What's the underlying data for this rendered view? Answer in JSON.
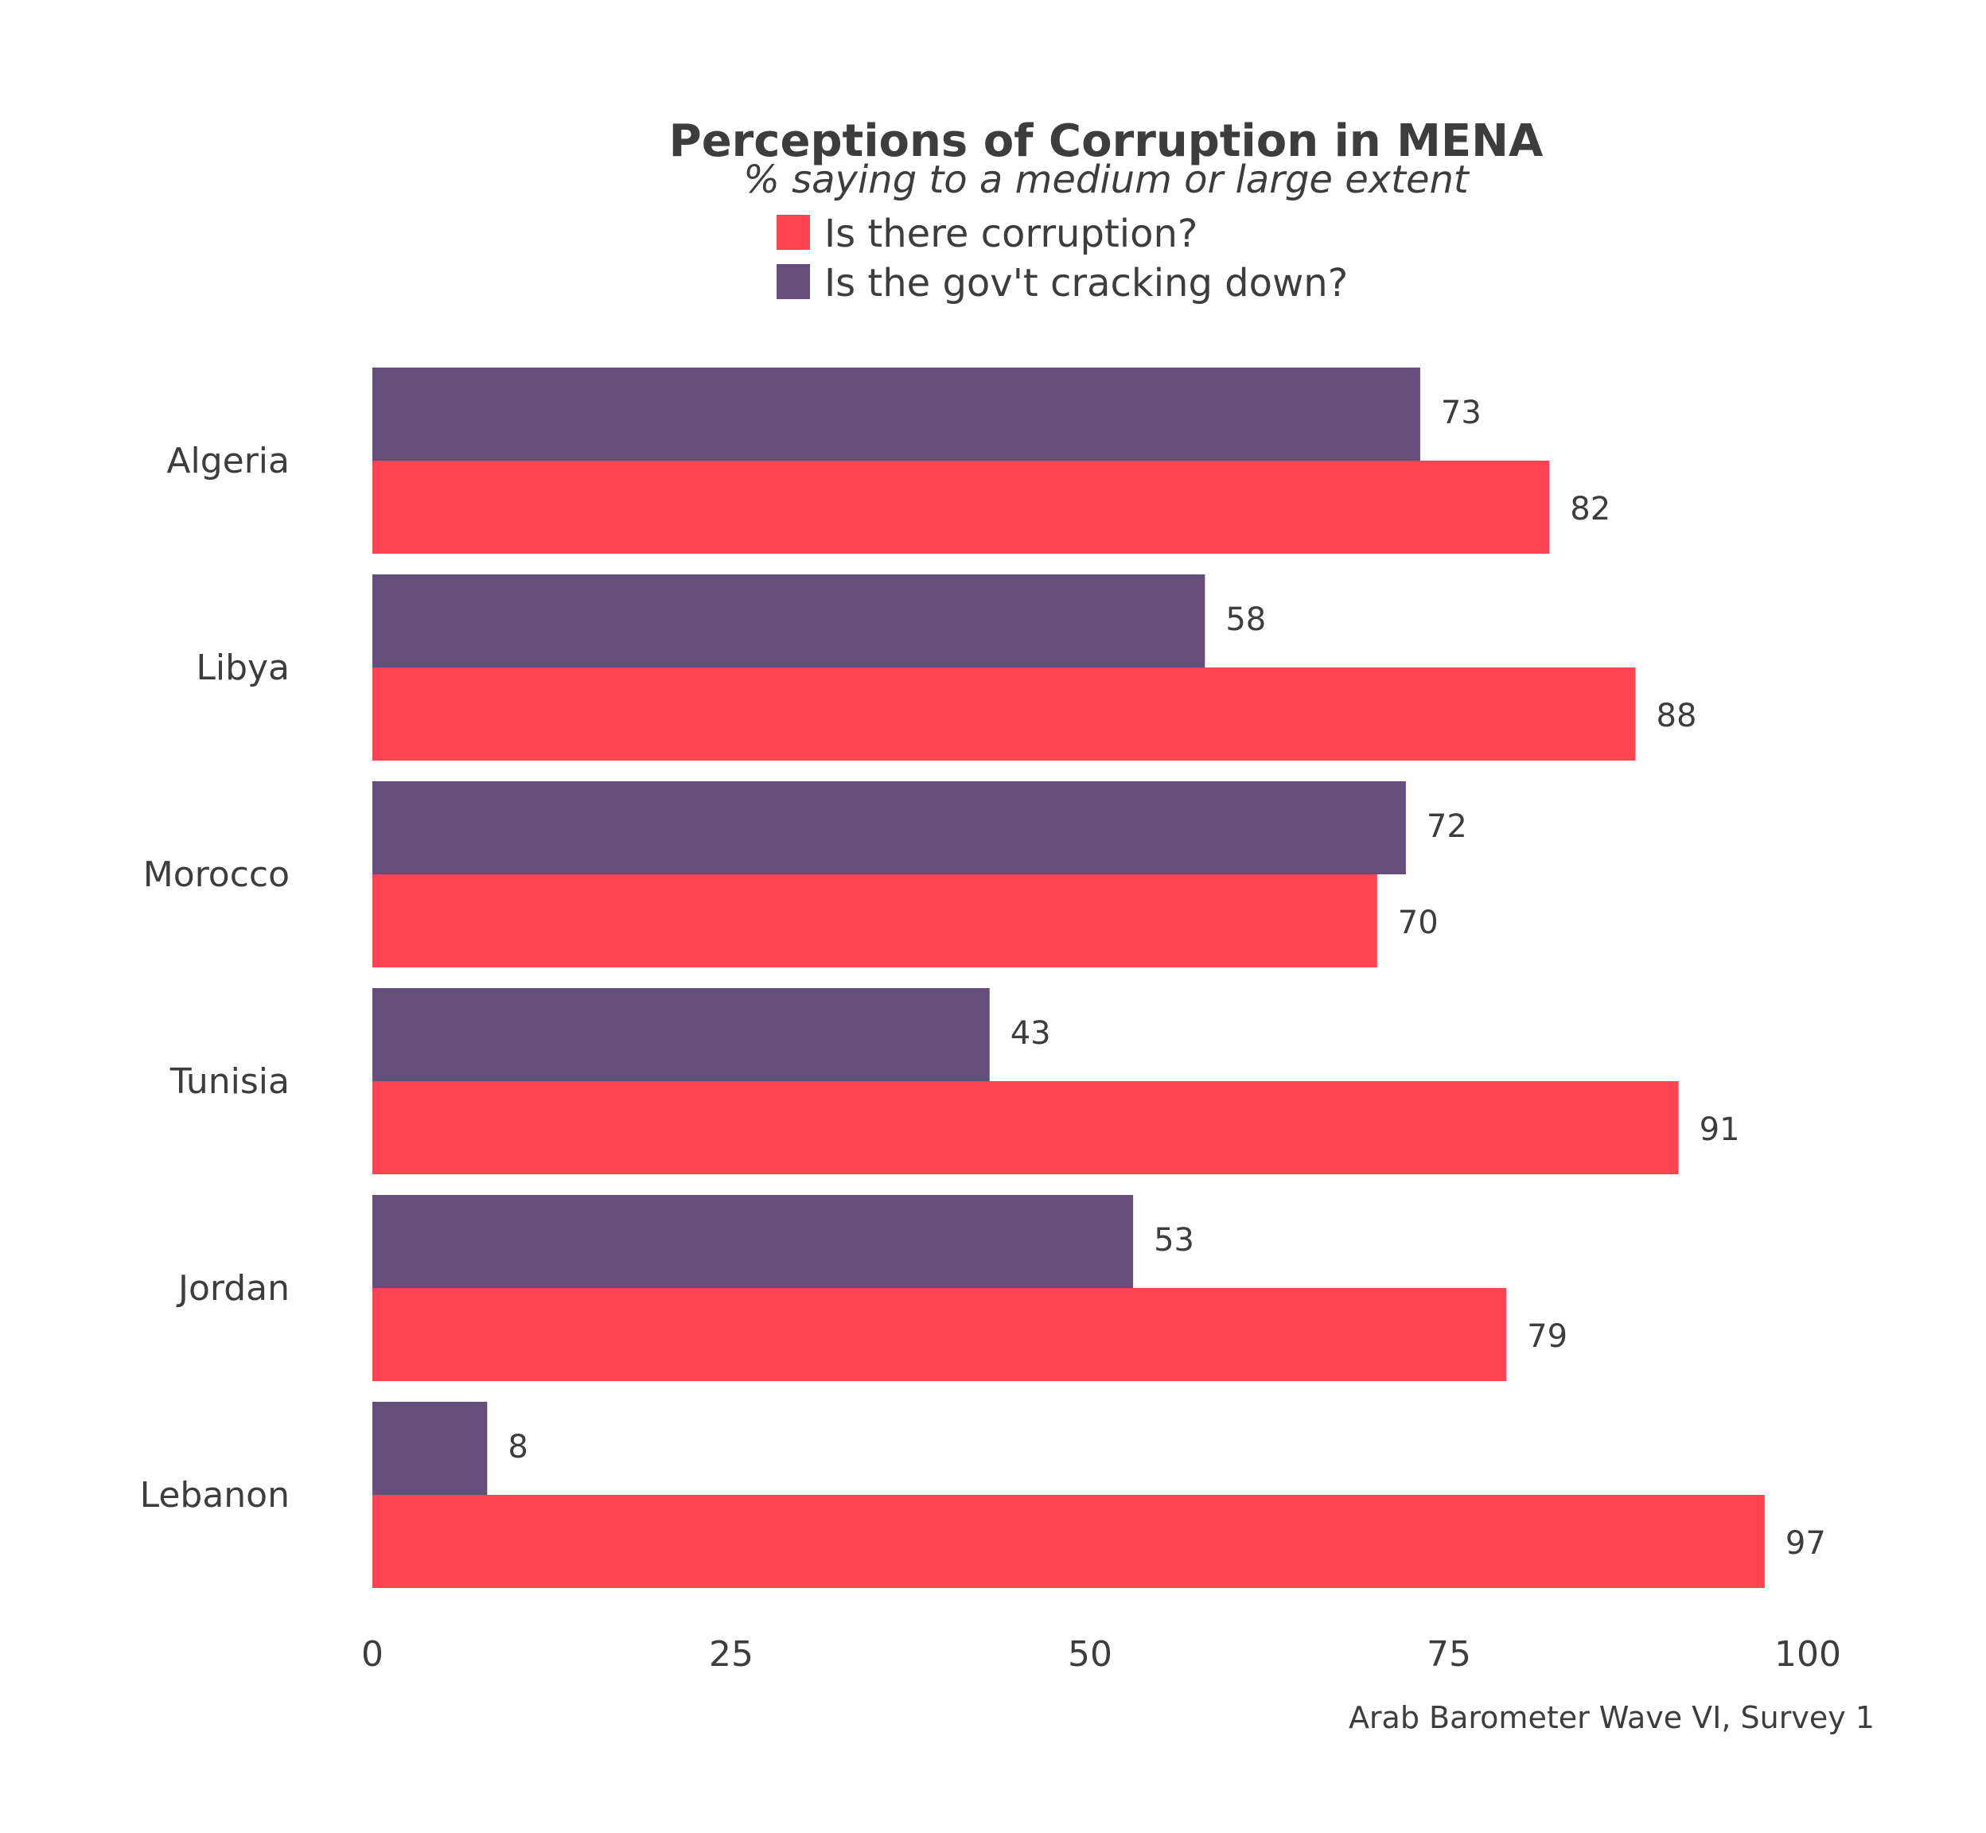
{
  "chart_data": {
    "type": "bar",
    "orientation": "horizontal",
    "title": "Perceptions of Corruption in MENA",
    "subtitle": "% saying to a medium or large extent",
    "categories": [
      "Algeria",
      "Libya",
      "Morocco",
      "Tunisia",
      "Jordan",
      "Lebanon"
    ],
    "series": [
      {
        "name": "Is there corruption?",
        "color": "#fe4352",
        "values": [
          82,
          88,
          70,
          91,
          79,
          97
        ]
      },
      {
        "name": "Is the gov't cracking down?",
        "color": "#654e7c",
        "values": [
          73,
          58,
          72,
          43,
          53,
          8
        ]
      }
    ],
    "xlim": [
      0,
      100
    ],
    "xticks": [
      0,
      25,
      50,
      75,
      100
    ],
    "grid": false,
    "legend_position": "top-center",
    "caption": "Arab Barometer Wave VI, Survey 1"
  }
}
